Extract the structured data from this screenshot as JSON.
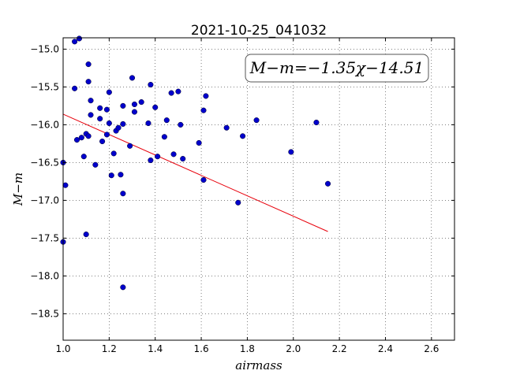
{
  "chart_data": {
    "type": "scatter",
    "title": "2021-10-25_041032",
    "xlabel": "airmass",
    "ylabel": "M−m",
    "xlim": [
      1.0,
      2.7
    ],
    "ylim": [
      -18.85,
      -14.85
    ],
    "ylim_inverted": true,
    "x_ticks": [
      "1.0",
      "1.2",
      "1.4",
      "1.6",
      "1.8",
      "2.0",
      "2.2",
      "2.4",
      "2.6"
    ],
    "y_ticks": [
      "−15.0",
      "−15.5",
      "−16.0",
      "−16.5",
      "−17.0",
      "−17.5",
      "−18.0",
      "−18.5"
    ],
    "grid": true,
    "annotation": "M−m=−1.35χ−14.51",
    "fit": {
      "slope": -1.35,
      "intercept": -14.51,
      "x_range": [
        1.0,
        2.15
      ],
      "color": "#e8000b"
    },
    "point_color": "#0000cc",
    "points": [
      [
        1.0,
        -16.5
      ],
      [
        1.0,
        -17.55
      ],
      [
        1.01,
        -16.8
      ],
      [
        1.05,
        -14.9
      ],
      [
        1.07,
        -14.86
      ],
      [
        1.05,
        -15.52
      ],
      [
        1.06,
        -16.2
      ],
      [
        1.08,
        -16.17
      ],
      [
        1.09,
        -16.42
      ],
      [
        1.1,
        -16.12
      ],
      [
        1.1,
        -17.45
      ],
      [
        1.11,
        -15.2
      ],
      [
        1.11,
        -15.43
      ],
      [
        1.11,
        -16.15
      ],
      [
        1.12,
        -15.68
      ],
      [
        1.12,
        -15.87
      ],
      [
        1.14,
        -16.53
      ],
      [
        1.16,
        -15.78
      ],
      [
        1.16,
        -15.92
      ],
      [
        1.17,
        -16.22
      ],
      [
        1.19,
        -15.8
      ],
      [
        1.19,
        -16.13
      ],
      [
        1.2,
        -15.57
      ],
      [
        1.2,
        -15.98
      ],
      [
        1.21,
        -16.67
      ],
      [
        1.22,
        -16.38
      ],
      [
        1.23,
        -16.08
      ],
      [
        1.24,
        -16.04
      ],
      [
        1.25,
        -16.66
      ],
      [
        1.26,
        -16.91
      ],
      [
        1.26,
        -15.75
      ],
      [
        1.26,
        -15.99
      ],
      [
        1.26,
        -18.15
      ],
      [
        1.29,
        -16.28
      ],
      [
        1.3,
        -15.38
      ],
      [
        1.31,
        -15.73
      ],
      [
        1.31,
        -15.83
      ],
      [
        1.34,
        -15.7
      ],
      [
        1.37,
        -15.98
      ],
      [
        1.38,
        -15.47
      ],
      [
        1.38,
        -16.47
      ],
      [
        1.4,
        -15.77
      ],
      [
        1.41,
        -16.42
      ],
      [
        1.44,
        -16.16
      ],
      [
        1.45,
        -15.94
      ],
      [
        1.47,
        -15.58
      ],
      [
        1.48,
        -16.39
      ],
      [
        1.5,
        -15.56
      ],
      [
        1.51,
        -16.0
      ],
      [
        1.52,
        -16.45
      ],
      [
        1.59,
        -16.24
      ],
      [
        1.61,
        -15.81
      ],
      [
        1.61,
        -16.73
      ],
      [
        1.62,
        -15.62
      ],
      [
        1.71,
        -16.04
      ],
      [
        1.76,
        -17.03
      ],
      [
        1.78,
        -16.15
      ],
      [
        1.84,
        -15.94
      ],
      [
        1.99,
        -16.36
      ],
      [
        2.1,
        -15.97
      ],
      [
        2.15,
        -16.78
      ]
    ]
  }
}
